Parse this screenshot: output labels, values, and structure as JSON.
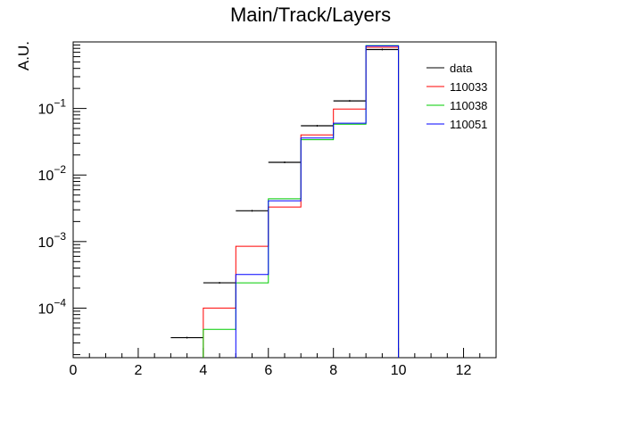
{
  "chart_data": {
    "type": "step-histogram",
    "title": "Main/Track/Layers",
    "xlabel": "",
    "ylabel": "A.U.",
    "xlim": [
      0,
      13
    ],
    "ylim": [
      1.8e-05,
      1.0
    ],
    "yscale": "log",
    "grid": false,
    "legend_position": "top-right",
    "x_ticks": [
      0,
      2,
      4,
      6,
      8,
      10,
      12
    ],
    "y_ticks": [
      {
        "value": 0.0001,
        "base": "10",
        "exp": "−4"
      },
      {
        "value": 0.001,
        "base": "10",
        "exp": "−3"
      },
      {
        "value": 0.01,
        "base": "10",
        "exp": "−2"
      },
      {
        "value": 0.1,
        "base": "10",
        "exp": "−1"
      }
    ],
    "series": [
      {
        "name": "data",
        "color": "#000000",
        "style": "points",
        "bins": [
          {
            "x0": 3,
            "x1": 4,
            "y": 3.6e-05
          },
          {
            "x0": 4,
            "x1": 5,
            "y": 0.00024
          },
          {
            "x0": 5,
            "x1": 6,
            "y": 0.0029
          },
          {
            "x0": 6,
            "x1": 7,
            "y": 0.0155
          },
          {
            "x0": 7,
            "x1": 8,
            "y": 0.055
          },
          {
            "x0": 8,
            "x1": 9,
            "y": 0.13
          },
          {
            "x0": 9,
            "x1": 10,
            "y": 0.77
          }
        ]
      },
      {
        "name": "110033",
        "color": "#ff0000",
        "style": "step",
        "bins": [
          {
            "x0": 4,
            "x1": 5,
            "y": 0.0001
          },
          {
            "x0": 5,
            "x1": 6,
            "y": 0.00085
          },
          {
            "x0": 6,
            "x1": 7,
            "y": 0.0033
          },
          {
            "x0": 7,
            "x1": 8,
            "y": 0.04
          },
          {
            "x0": 8,
            "x1": 9,
            "y": 0.098
          },
          {
            "x0": 9,
            "x1": 10,
            "y": 0.83
          }
        ]
      },
      {
        "name": "110038",
        "color": "#00cc00",
        "style": "step",
        "bins": [
          {
            "x0": 4,
            "x1": 5,
            "y": 4.8e-05
          },
          {
            "x0": 5,
            "x1": 6,
            "y": 0.00024
          },
          {
            "x0": 6,
            "x1": 7,
            "y": 0.0044
          },
          {
            "x0": 7,
            "x1": 8,
            "y": 0.034
          },
          {
            "x0": 8,
            "x1": 9,
            "y": 0.058
          },
          {
            "x0": 9,
            "x1": 10,
            "y": 0.88
          }
        ]
      },
      {
        "name": "110051",
        "color": "#0000ff",
        "style": "step",
        "bins": [
          {
            "x0": 5,
            "x1": 6,
            "y": 0.00032
          },
          {
            "x0": 6,
            "x1": 7,
            "y": 0.0041
          },
          {
            "x0": 7,
            "x1": 8,
            "y": 0.036
          },
          {
            "x0": 8,
            "x1": 9,
            "y": 0.06
          },
          {
            "x0": 9,
            "x1": 10,
            "y": 0.87
          }
        ]
      }
    ]
  }
}
